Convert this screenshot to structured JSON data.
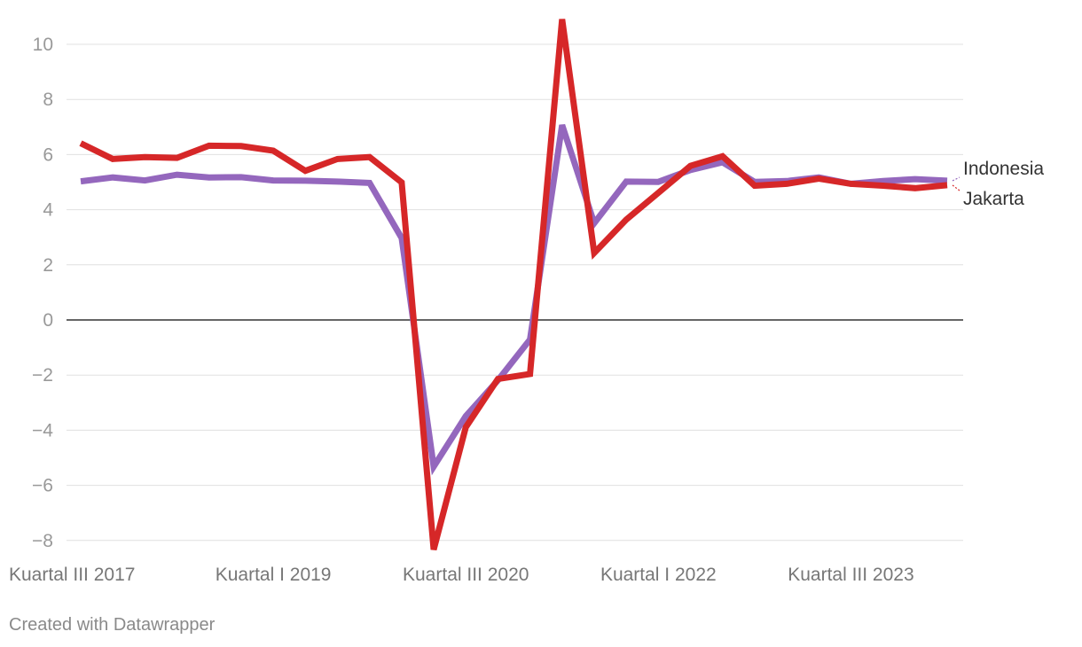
{
  "footer": {
    "credit": "Created with Datawrapper"
  },
  "colors": {
    "indonesia": "#9467bd",
    "jakarta": "#d62728",
    "grid": "#e0e0e0",
    "zero_line": "#333333",
    "tick_text": "#999999",
    "label_text": "#333333"
  },
  "chart_data": {
    "type": "line",
    "title": "",
    "xlabel": "",
    "ylabel": "",
    "ylim": [
      -8,
      11
    ],
    "yticks": [
      -8,
      -6,
      -4,
      -2,
      0,
      2,
      4,
      6,
      8,
      10
    ],
    "ytick_labels": [
      "−8",
      "−6",
      "−4",
      "−2",
      "0",
      "2",
      "4",
      "6",
      "8",
      "10"
    ],
    "grid": true,
    "legend": "line-end labels",
    "x": [
      "Kuartal III 2017",
      "Kuartal IV 2017",
      "Kuartal I 2018",
      "Kuartal II 2018",
      "Kuartal III 2018",
      "Kuartal IV 2018",
      "Kuartal I 2019",
      "Kuartal II 2019",
      "Kuartal III 2019",
      "Kuartal IV 2019",
      "Kuartal I 2020",
      "Kuartal II 2020",
      "Kuartal III 2020",
      "Kuartal IV 2020",
      "Kuartal I 2021",
      "Kuartal II 2021",
      "Kuartal III 2021",
      "Kuartal IV 2021",
      "Kuartal I 2022",
      "Kuartal II 2022",
      "Kuartal III 2022",
      "Kuartal IV 2022",
      "Kuartal I 2023",
      "Kuartal II 2023",
      "Kuartal III 2023",
      "Kuartal IV 2023",
      "Kuartal I 2024",
      "Kuartal II 2024"
    ],
    "xtick_labels": [
      {
        "index": 0,
        "label": "Kuartal III 2017"
      },
      {
        "index": 6,
        "label": "Kuartal I 2019"
      },
      {
        "index": 12,
        "label": "Kuartal III 2020"
      },
      {
        "index": 18,
        "label": "Kuartal I 2022"
      },
      {
        "index": 24,
        "label": "Kuartal III 2023"
      }
    ],
    "series": [
      {
        "name": "Indonesia",
        "color": "#9467bd",
        "values": [
          5.03,
          5.17,
          5.06,
          5.27,
          5.17,
          5.18,
          5.06,
          5.05,
          5.02,
          4.97,
          2.97,
          -5.32,
          -3.49,
          -2.19,
          -0.71,
          7.07,
          3.51,
          5.02,
          5.01,
          5.44,
          5.72,
          5.01,
          5.04,
          5.17,
          4.94,
          5.04,
          5.11,
          5.05
        ]
      },
      {
        "name": "Jakarta",
        "color": "#d62728",
        "values": [
          6.41,
          5.84,
          5.91,
          5.88,
          6.32,
          6.31,
          6.14,
          5.41,
          5.84,
          5.91,
          4.99,
          -8.33,
          -3.89,
          -2.14,
          -1.96,
          10.91,
          2.43,
          3.64,
          4.61,
          5.59,
          5.94,
          4.87,
          4.94,
          5.13,
          4.94,
          4.87,
          4.78,
          4.89
        ]
      }
    ]
  }
}
